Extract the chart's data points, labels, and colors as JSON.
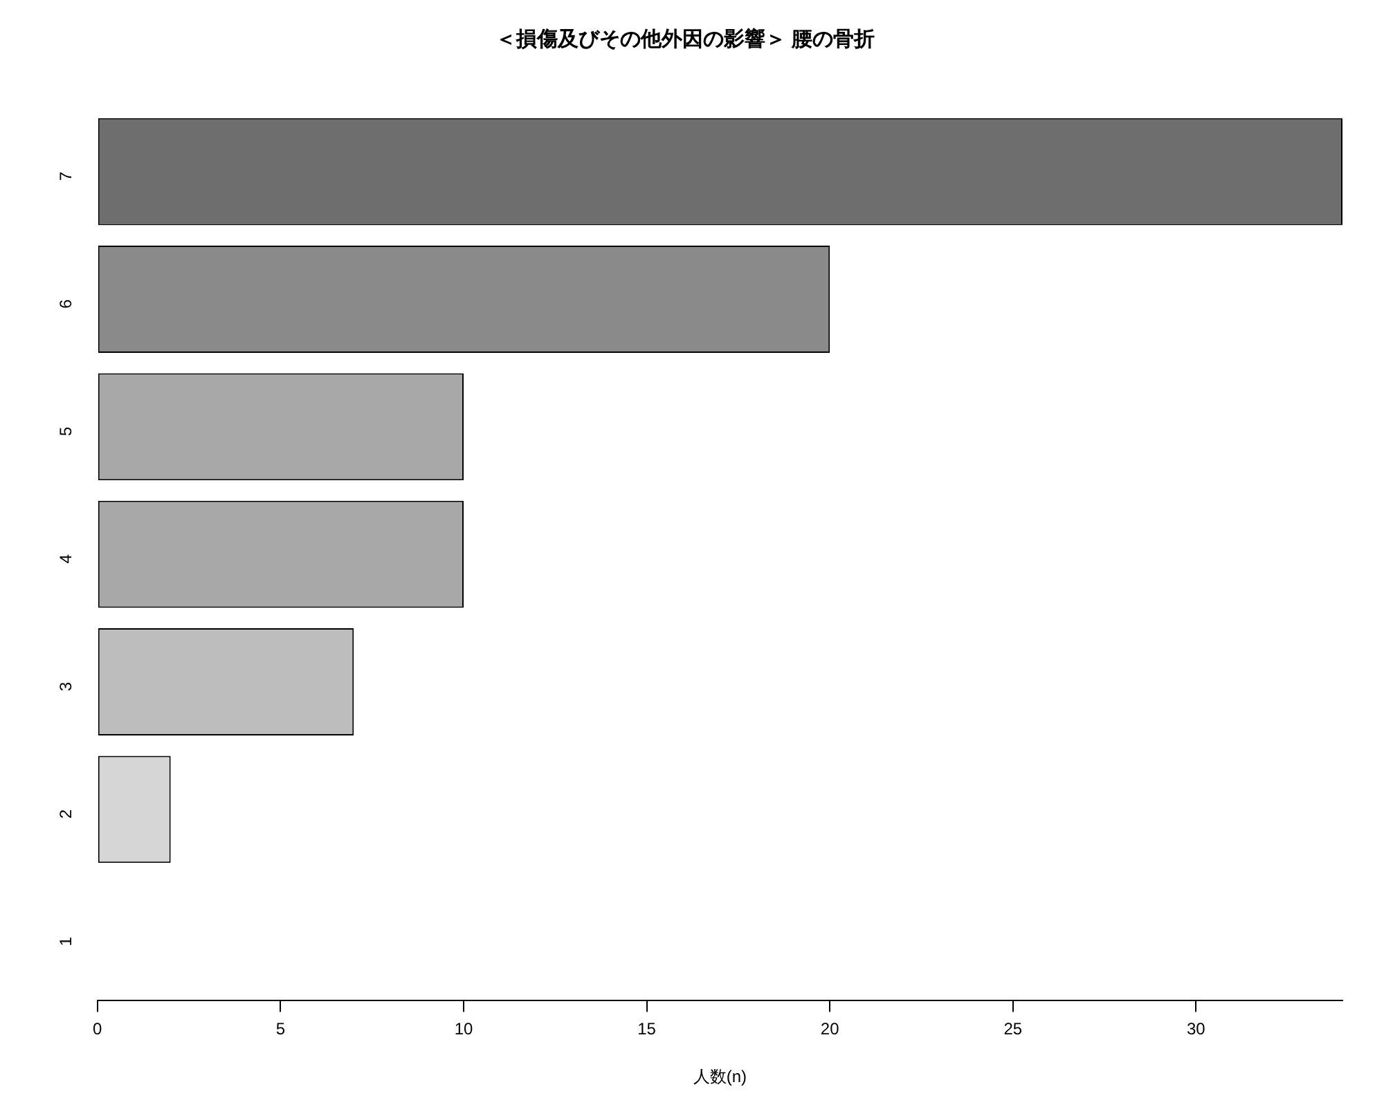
{
  "chart_data": {
    "type": "bar",
    "orientation": "horizontal",
    "title": "＜損傷及びその他外因の影響＞ 腰の骨折",
    "xlabel": "人数(n)",
    "categories": [
      "7",
      "6",
      "5",
      "4",
      "3",
      "2",
      "1"
    ],
    "values": [
      34,
      20,
      10,
      10,
      7,
      2,
      0
    ],
    "colors": [
      "#6e6e6e",
      "#8a8a8a",
      "#a8a8a8",
      "#a8a8a8",
      "#bdbdbd",
      "#d6d6d6",
      "#e6e6e6"
    ],
    "xlim": [
      0,
      34
    ],
    "xticks": [
      0,
      5,
      10,
      15,
      20,
      25,
      30
    ],
    "grid": false,
    "legend": false
  }
}
